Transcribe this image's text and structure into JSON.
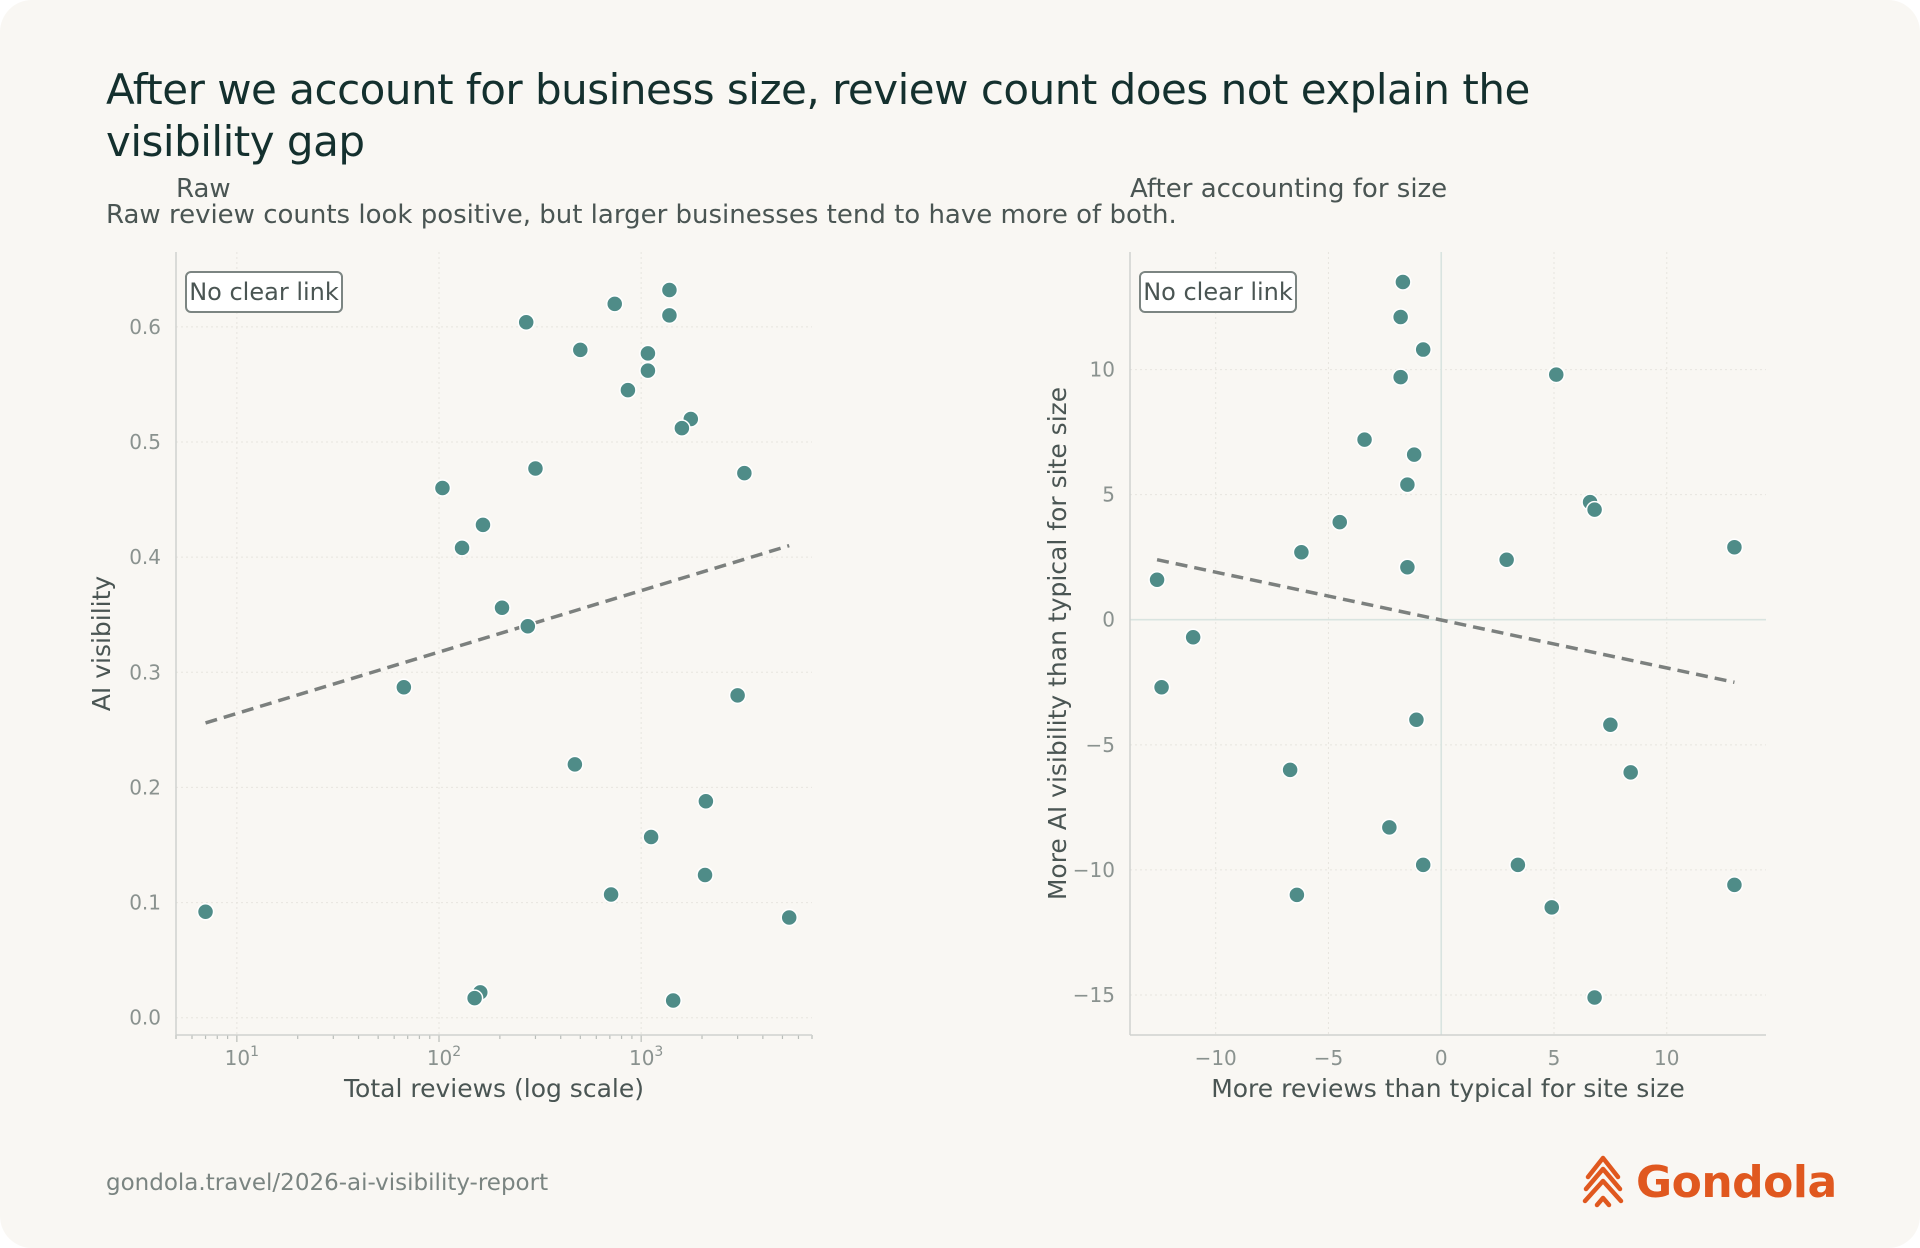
{
  "title": "After we account for business size, review count does not explain the visibility gap",
  "subtitle": "Raw review counts look positive, but larger businesses tend to have more of both.",
  "footer": {
    "url": "gondola.travel/2026-ai-visibility-report",
    "brand": "Gondola"
  },
  "colors": {
    "point": "#4f8c88",
    "trend": "#7c807e",
    "brand": "#e0581f"
  },
  "icons": {
    "logo": "gondola-logo-icon"
  },
  "chart_data": [
    {
      "type": "scatter",
      "title": "Raw",
      "xlabel": "Total reviews (log scale)",
      "ylabel": "AI visibility",
      "xscale": "log",
      "xlim": [
        5,
        7000
      ],
      "ylim": [
        -0.015,
        0.665
      ],
      "xticks": [
        10,
        100,
        1000
      ],
      "xtick_labels": [
        {
          "base": "10",
          "exp": "1"
        },
        {
          "base": "10",
          "exp": "2"
        },
        {
          "base": "10",
          "exp": "3"
        }
      ],
      "yticks": [
        0.0,
        0.1,
        0.2,
        0.3,
        0.4,
        0.5,
        0.6
      ],
      "ytick_labels": [
        "0.0",
        "0.1",
        "0.2",
        "0.3",
        "0.4",
        "0.5",
        "0.6"
      ],
      "annotation": "No clear link",
      "trend": {
        "style": "dashed",
        "x": [
          7,
          5400
        ],
        "y": [
          0.256,
          0.41
        ]
      },
      "points": [
        {
          "x": 7,
          "y": 0.092
        },
        {
          "x": 1380,
          "y": 0.632
        },
        {
          "x": 740,
          "y": 0.62
        },
        {
          "x": 1380,
          "y": 0.61
        },
        {
          "x": 270,
          "y": 0.604
        },
        {
          "x": 500,
          "y": 0.58
        },
        {
          "x": 1080,
          "y": 0.577
        },
        {
          "x": 1080,
          "y": 0.562
        },
        {
          "x": 860,
          "y": 0.545
        },
        {
          "x": 1760,
          "y": 0.52
        },
        {
          "x": 1590,
          "y": 0.512
        },
        {
          "x": 3240,
          "y": 0.473
        },
        {
          "x": 300,
          "y": 0.477
        },
        {
          "x": 104,
          "y": 0.46
        },
        {
          "x": 165,
          "y": 0.428
        },
        {
          "x": 130,
          "y": 0.408
        },
        {
          "x": 205,
          "y": 0.356
        },
        {
          "x": 275,
          "y": 0.34
        },
        {
          "x": 67,
          "y": 0.287
        },
        {
          "x": 3000,
          "y": 0.28
        },
        {
          "x": 470,
          "y": 0.22
        },
        {
          "x": 2090,
          "y": 0.188
        },
        {
          "x": 1120,
          "y": 0.157
        },
        {
          "x": 2070,
          "y": 0.124
        },
        {
          "x": 710,
          "y": 0.107
        },
        {
          "x": 5400,
          "y": 0.087
        },
        {
          "x": 160,
          "y": 0.022
        },
        {
          "x": 150,
          "y": 0.017
        },
        {
          "x": 1440,
          "y": 0.015
        }
      ]
    },
    {
      "type": "scatter",
      "title": "After accounting for size",
      "xlabel": "More reviews than typical for site size",
      "ylabel": "More AI visibility than typical for site size",
      "xlim": [
        -13.8,
        14.4
      ],
      "ylim": [
        -16.6,
        14.7
      ],
      "xticks": [
        -10,
        -5,
        0,
        5,
        10
      ],
      "xtick_labels": [
        "−10",
        "−5",
        "0",
        "5",
        "10"
      ],
      "yticks": [
        -15,
        -10,
        -5,
        0,
        5,
        10
      ],
      "ytick_labels": [
        "−15",
        "−10",
        "−5",
        "0",
        "5",
        "10"
      ],
      "annotation": "No clear link",
      "zero_lines": true,
      "trend": {
        "style": "dashed",
        "x": [
          -12.6,
          13.0
        ],
        "y": [
          2.4,
          -2.5
        ]
      },
      "points": [
        {
          "x": -1.7,
          "y": 13.5
        },
        {
          "x": -1.8,
          "y": 12.1
        },
        {
          "x": -0.8,
          "y": 10.8
        },
        {
          "x": -1.8,
          "y": 9.7
        },
        {
          "x": 5.1,
          "y": 9.8
        },
        {
          "x": -3.4,
          "y": 7.2
        },
        {
          "x": -1.2,
          "y": 6.6
        },
        {
          "x": -1.5,
          "y": 5.4
        },
        {
          "x": 6.6,
          "y": 4.7
        },
        {
          "x": 6.8,
          "y": 4.4
        },
        {
          "x": -4.5,
          "y": 3.9
        },
        {
          "x": -6.2,
          "y": 2.7
        },
        {
          "x": -1.5,
          "y": 2.1
        },
        {
          "x": 2.9,
          "y": 2.4
        },
        {
          "x": 13.0,
          "y": 2.9
        },
        {
          "x": -12.6,
          "y": 1.6
        },
        {
          "x": -11.0,
          "y": -0.7
        },
        {
          "x": -12.4,
          "y": -2.7
        },
        {
          "x": -1.1,
          "y": -4.0
        },
        {
          "x": 7.5,
          "y": -4.2
        },
        {
          "x": 8.4,
          "y": -6.1
        },
        {
          "x": -6.7,
          "y": -6.0
        },
        {
          "x": -2.3,
          "y": -8.3
        },
        {
          "x": -0.8,
          "y": -9.8
        },
        {
          "x": 3.4,
          "y": -9.8
        },
        {
          "x": 13.0,
          "y": -10.6
        },
        {
          "x": -6.4,
          "y": -11.0
        },
        {
          "x": 4.9,
          "y": -11.5
        },
        {
          "x": 6.8,
          "y": -15.1
        }
      ]
    }
  ]
}
